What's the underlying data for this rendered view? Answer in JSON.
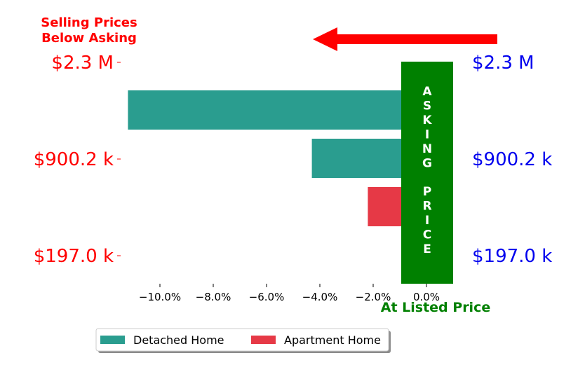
{
  "chart_data": {
    "type": "bar",
    "orientation": "horizontal",
    "series": [
      {
        "name": "Detached Home",
        "color": "#2a9d8f",
        "values": [
          -11.2,
          -4.3
        ]
      },
      {
        "name": "Apartment Home",
        "color": "#e63946",
        "values": [
          -2.2
        ]
      }
    ],
    "xlim": [
      -11.5,
      1.0
    ],
    "xticks": [
      -10,
      -8,
      -6,
      -4,
      -2,
      0
    ],
    "xtick_labels": [
      "−10.0%",
      "−8.0%",
      "−6.0%",
      "−4.0%",
      "−2.0%",
      "0.0%"
    ],
    "xlabel": "At Listed Price",
    "left_ticks": [
      "$2.3 M",
      "$900.2 k",
      "$197.0 k"
    ],
    "right_ticks": [
      "$2.3 M",
      "$900.2 k",
      "$197.0 k"
    ],
    "annotation_title": [
      "Selling Prices",
      "Below Asking"
    ],
    "asking_band_text": "ASKING PRICE",
    "legend": {
      "placement": "bottom-left-outside",
      "entries": [
        "Detached Home",
        "Apartment Home"
      ]
    },
    "colors": {
      "left_ticks": "#ff0000",
      "right_ticks": "#0000ee",
      "asking_band": "#008000",
      "arrow": "#ff0000",
      "xlabel": "#008000",
      "annotation_title": "#ff0000"
    }
  }
}
